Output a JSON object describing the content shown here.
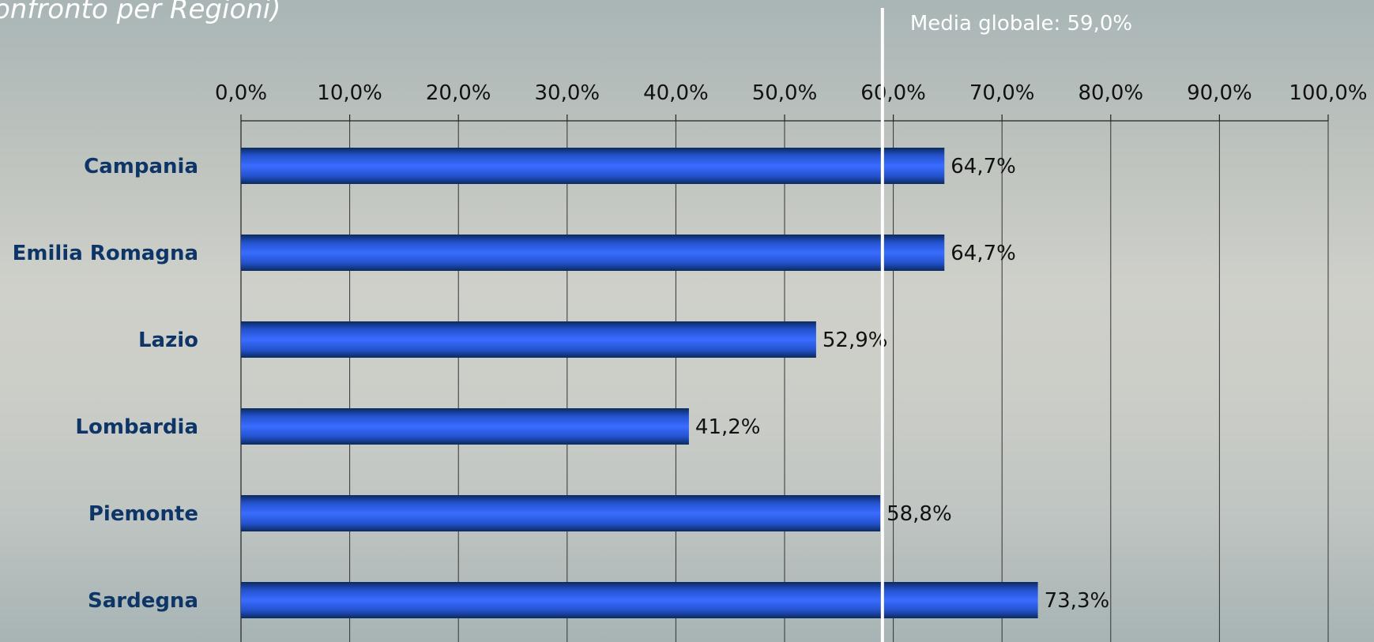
{
  "title": "onfronto per Regioni)",
  "chart_data": {
    "type": "bar",
    "orientation": "horizontal",
    "title": "onfronto per Regioni)",
    "categories": [
      "Campania",
      "Emilia Romagna",
      "Lazio",
      "Lombardia",
      "Piemonte",
      "Sardegna"
    ],
    "values": [
      64.7,
      64.7,
      52.9,
      41.2,
      58.8,
      73.3
    ],
    "value_labels": [
      "64,7%",
      "64,7%",
      "52,9%",
      "41,2%",
      "58,8%",
      "73,3%"
    ],
    "xlim": [
      0,
      100
    ],
    "xticks": [
      0,
      10,
      20,
      30,
      40,
      50,
      60,
      70,
      80,
      90,
      100
    ],
    "xtick_labels": [
      "0,0%",
      "10,0%",
      "20,0%",
      "30,0%",
      "40,0%",
      "50,0%",
      "60,0%",
      "70,0%",
      "80,0%",
      "90,0%",
      "100,0%"
    ],
    "x_axis_position": "top",
    "grid": true,
    "reference_line": {
      "value": 59.0,
      "label": "Media globale: 59,0%"
    },
    "colors": {
      "bar": "#2f5fe8",
      "bar_edge": "#0b2a5e",
      "category_text": "#0e3567",
      "reference_line": "#ffffff"
    }
  }
}
